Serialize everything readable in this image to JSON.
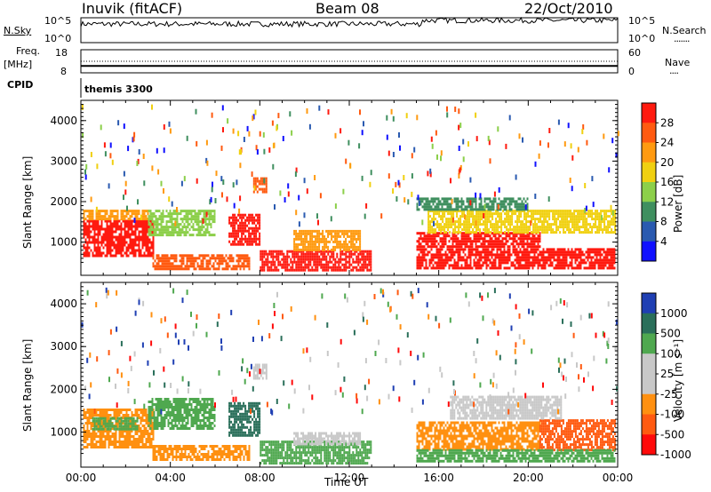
{
  "header": {
    "station": "Inuvik (fitACF)",
    "beam": "Beam 08",
    "date": "22/Oct/2010"
  },
  "sky_panel": {
    "left_label": "N.Sky",
    "right_label": "N.Search",
    "right_dots": "·······",
    "left_ticks": [
      "10^5",
      "10^0"
    ],
    "right_ticks": [
      "10^5",
      "10^0"
    ]
  },
  "freq_panel": {
    "left_label_1": "Freq.",
    "left_label_2": "[MHz]",
    "right_label": "Nave",
    "right_dots": "····",
    "left_ticks": [
      "18",
      "8"
    ],
    "right_ticks": [
      "60",
      "0"
    ],
    "freq_mhz": 11,
    "nave": 30
  },
  "cpid": {
    "label": "CPID",
    "value": "themis 3300"
  },
  "x_axis": {
    "label": "Time UT",
    "ticks": [
      "00:00",
      "04:00",
      "08:00",
      "12:00",
      "16:00",
      "20:00",
      "00:00"
    ]
  },
  "chart_data": [
    {
      "type": "heatmap",
      "quantity": "Power",
      "colorbar_label": "Power [dB]",
      "colorbar_ticks": [
        "28",
        "24",
        "20",
        "16",
        "12",
        "8",
        "4"
      ],
      "ylabel": "Slant Range [km]",
      "yticks": [
        "4000",
        "3000",
        "2000",
        "1000"
      ],
      "ylim": [
        180,
        4500
      ],
      "xlim": [
        "00:00",
        "24:00"
      ],
      "regions": [
        {
          "t0": 0.1,
          "t1": 3.2,
          "r0": 650,
          "r1": 1550,
          "level": "28"
        },
        {
          "t0": 0.1,
          "t1": 3.0,
          "r0": 1550,
          "r1": 1800,
          "level": "20"
        },
        {
          "t0": 3.0,
          "t1": 6.0,
          "r0": 1200,
          "r1": 1800,
          "level": "12"
        },
        {
          "t0": 3.2,
          "t1": 7.5,
          "r0": 350,
          "r1": 700,
          "level": "24"
        },
        {
          "t0": 6.6,
          "t1": 8.0,
          "r0": 950,
          "r1": 1700,
          "level": "28"
        },
        {
          "t0": 7.7,
          "t1": 8.3,
          "r0": 2250,
          "r1": 2600,
          "level": "24"
        },
        {
          "t0": 8.0,
          "t1": 13.0,
          "r0": 300,
          "r1": 800,
          "level": "28"
        },
        {
          "t0": 9.5,
          "t1": 12.5,
          "r0": 800,
          "r1": 1300,
          "level": "20"
        },
        {
          "t0": 15.0,
          "t1": 20.5,
          "r0": 900,
          "r1": 1250,
          "level": "28"
        },
        {
          "t0": 15.0,
          "t1": 23.9,
          "r0": 350,
          "r1": 850,
          "level": "28"
        },
        {
          "t0": 15.5,
          "t1": 23.9,
          "r0": 1250,
          "r1": 1800,
          "level": "16"
        },
        {
          "t0": 15.0,
          "t1": 20.0,
          "r0": 1800,
          "r1": 2100,
          "level": "8"
        }
      ]
    },
    {
      "type": "heatmap",
      "quantity": "Velocity",
      "colorbar_label": "Velocity [m s⁻¹]",
      "colorbar_ticks": [
        "1000",
        "500",
        "100",
        "25",
        "-25",
        "-100",
        "-500",
        "-1000"
      ],
      "ylabel": "Slant Range [km]",
      "yticks": [
        "4000",
        "3000",
        "2000",
        "1000"
      ],
      "ylim": [
        180,
        4500
      ],
      "xlim": [
        "00:00",
        "24:00"
      ],
      "regions": [
        {
          "t0": 0.1,
          "t1": 3.2,
          "r0": 650,
          "r1": 1550,
          "level": "-100"
        },
        {
          "t0": 0.5,
          "t1": 2.5,
          "r0": 1100,
          "r1": 1350,
          "level": "100"
        },
        {
          "t0": 3.0,
          "t1": 6.0,
          "r0": 1100,
          "r1": 1800,
          "level": "100"
        },
        {
          "t0": 3.2,
          "t1": 7.5,
          "r0": 350,
          "r1": 700,
          "level": "-100"
        },
        {
          "t0": 6.6,
          "t1": 8.0,
          "r0": 900,
          "r1": 1700,
          "level": "500"
        },
        {
          "t0": 7.7,
          "t1": 8.3,
          "r0": 2250,
          "r1": 2600,
          "level": "25"
        },
        {
          "t0": 8.0,
          "t1": 13.0,
          "r0": 300,
          "r1": 800,
          "level": "100"
        },
        {
          "t0": 9.5,
          "t1": 12.5,
          "r0": 700,
          "r1": 1000,
          "level": "25"
        },
        {
          "t0": 15.0,
          "t1": 20.5,
          "r0": 600,
          "r1": 1250,
          "level": "-100"
        },
        {
          "t0": 20.5,
          "t1": 23.9,
          "r0": 600,
          "r1": 1300,
          "level": "-500"
        },
        {
          "t0": 15.0,
          "t1": 23.9,
          "r0": 300,
          "r1": 600,
          "level": "100"
        },
        {
          "t0": 16.5,
          "t1": 21.5,
          "r0": 1300,
          "r1": 1850,
          "level": "25"
        }
      ]
    }
  ],
  "colors": {
    "power": {
      "28": "#ff1a0f",
      "24": "#ff5a10",
      "20": "#ff9a10",
      "16": "#f0d010",
      "12": "#8ccf4a",
      "8": "#3f8f5f",
      "4": "#2a5ab0",
      "0": "#1010ff"
    },
    "velocity": {
      "1000": "#1f3fb3",
      "500": "#2a6f5a",
      "100": "#4fa84f",
      "25": "#c8c8c8",
      "-25": "#c8c8c8",
      "-100": "#ff9010",
      "-500": "#ff5a10",
      "-1000": "#ff0a0a"
    }
  }
}
